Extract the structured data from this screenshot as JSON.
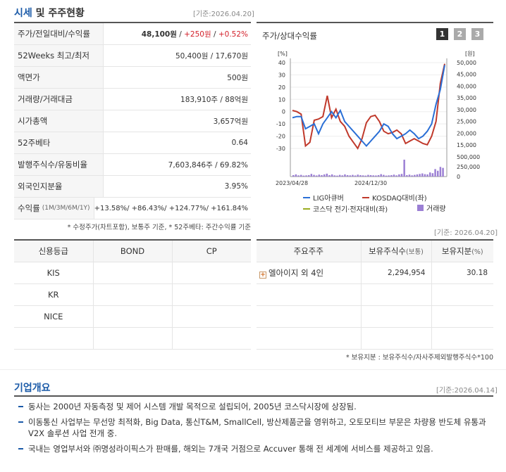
{
  "market": {
    "title_main": "시세",
    "title_sub": "및 주주현황",
    "as_of": "[기준:2026.04.20]",
    "rows": [
      {
        "label": "주가/전일대비/수익률",
        "price": "48,100원",
        "sep1": " / ",
        "change": "+250원",
        "sep2": " / ",
        "rate": "+0.52%"
      },
      {
        "label": "52Weeks 최고/최저",
        "value": "50,400원 / 17,670원"
      },
      {
        "label": "액면가",
        "value": "500원"
      },
      {
        "label": "거래량/거래대금",
        "value": "183,910주 / 88억원"
      },
      {
        "label": "시가총액",
        "value": "3,657억원"
      },
      {
        "label": "52주베타",
        "value": "0.64"
      },
      {
        "label": "발행주식수/유동비율",
        "value": "7,603,846주 / 69.82%"
      },
      {
        "label": "외국인지분율",
        "value": "3.95%"
      }
    ],
    "returns": {
      "label": "수익률",
      "periods": "(1M/3M/6M/1Y)",
      "value": "+13.58%/ +86.43%/ +124.77%/ +161.84%"
    },
    "note": "* 수정주가(차트포함), 보통주 기준, * 52주베타: 주간수익률 기준"
  },
  "chart_panel": {
    "title": "주가/상대수익률",
    "tabs": [
      "1",
      "2",
      "3"
    ],
    "active_tab": "1",
    "as_of": "[기준: 2026.04.20]"
  },
  "chart_data": {
    "type": "line",
    "left_unit": "[%]",
    "right_unit": "[원]",
    "left_ticks": [
      40,
      30,
      20,
      10,
      0,
      -10,
      -20,
      -30
    ],
    "right_ticks": [
      "50,000",
      "45,000",
      "40,000",
      "35,000",
      "30,000",
      "25,000",
      "20,000",
      "15,000"
    ],
    "volume_ticks": [
      "500,000",
      "250,000",
      "0"
    ],
    "ylim_pct": [
      -30,
      40
    ],
    "ylim_won": [
      15000,
      50000
    ],
    "ylim_volume": [
      0,
      500000
    ],
    "x_labels": [
      "2023/04/28",
      "2024/12/30"
    ],
    "series": [
      {
        "name": "LIG아큐버",
        "color": "#2a6fd6",
        "values": [
          -5,
          -4,
          -4,
          -14,
          -12,
          -10,
          -18,
          -10,
          -5,
          0,
          -5,
          1,
          -8,
          -12,
          -16,
          -20,
          -24,
          -28,
          -24,
          -20,
          -16,
          -10,
          -12,
          -18,
          -22,
          -20,
          -18,
          -15,
          -18,
          -22,
          -20,
          -16,
          -10,
          6,
          18,
          38
        ]
      },
      {
        "name": "KOSDAQ대비(좌)",
        "color": "#c0392b",
        "values": [
          1,
          0,
          -2,
          -28,
          -25,
          -7,
          -6,
          -4,
          13,
          -5,
          2,
          -8,
          -12,
          -20,
          -25,
          -30,
          -22,
          -9,
          -4,
          -3,
          -8,
          -16,
          -18,
          -17,
          -15,
          -18,
          -26,
          -24,
          -22,
          -24,
          -26,
          -27,
          -20,
          -8,
          23,
          39
        ]
      },
      {
        "name": "코스닥 전기·전자대비(좌)",
        "color": "#9aad1f",
        "values": []
      },
      {
        "name": "거래량",
        "color": "#9b7fd4",
        "values": [
          12,
          18,
          10,
          14,
          8,
          10,
          12,
          22,
          14,
          9,
          16,
          12,
          18,
          24,
          12,
          18,
          10,
          8,
          14,
          10,
          18,
          12,
          10,
          14,
          9,
          16,
          12,
          10,
          8,
          14,
          12,
          10,
          9,
          12,
          20,
          14,
          8,
          10,
          12,
          16,
          10,
          18,
          22,
          140,
          12,
          16,
          10,
          14,
          18,
          22,
          26,
          20,
          18,
          34,
          28,
          62,
          48,
          80,
          72
        ]
      }
    ]
  },
  "credit": {
    "headers": [
      "신용등급",
      "BOND",
      "CP"
    ],
    "rows": [
      [
        "KIS",
        "",
        ""
      ],
      [
        "KR",
        "",
        ""
      ],
      [
        "NICE",
        "",
        ""
      ],
      [
        "",
        "",
        ""
      ]
    ]
  },
  "holders": {
    "headers": {
      "h1": "주요주주",
      "h2": "보유주식수",
      "h2s": "(보통)",
      "h3": "보유지분",
      "h3s": "(%)"
    },
    "rows": [
      {
        "name": "엘아이지 외 4인",
        "shares": "2,294,954",
        "pct": "30.18"
      }
    ],
    "note": "* 보유지분 : 보유주식수/자사주제외발행주식수*100"
  },
  "overview": {
    "title": "기업개요",
    "as_of": "[기준:2026.04.14]",
    "items": [
      "동사는 2000년 자동측정 및 제어 시스템 개발 목적으로 설립되어, 2005년 코스닥시장에 상장됨.",
      "이동통신 사업부는 무선망 최적화, Big Data, 통신T&M, SmallCell, 방산제품군을 영위하고, 오토모티브 부문은 차량용 반도체 유통과 V2X 솔루션 사업 전개 중.",
      "국내는 영업부서와 ㈜명성라이픽스가 판매를, 해외는 7개국 거점으로 Accuver 통해 전 세계에 서비스를 제공하고 있음."
    ]
  }
}
